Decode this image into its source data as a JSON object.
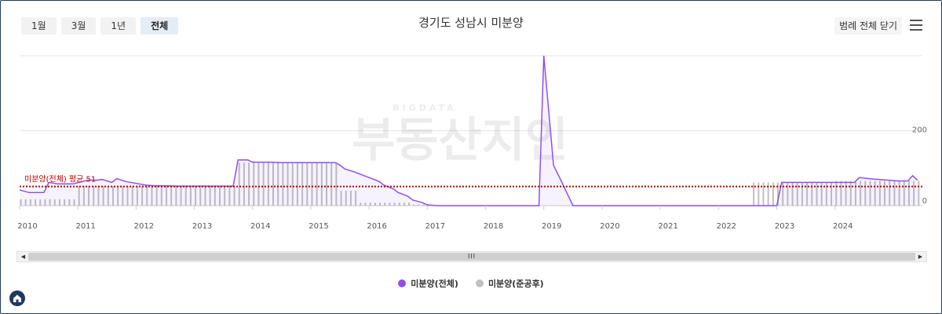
{
  "range_buttons": [
    "1월",
    "3월",
    "1년",
    "전체"
  ],
  "active_range": "전체",
  "title": "경기도 성남시 미분양",
  "legend_close_label": "범례 전체 닫기",
  "watermark": {
    "small": "BIGDATA",
    "big": "부동산지인"
  },
  "colors": {
    "total": "#8e4ff0",
    "completed": "#c0c0c0",
    "average": "#c00000",
    "grid": "#e6e6e6"
  },
  "icons": {
    "menu": "hamburger-menu-icon",
    "scroll_left": "arrow-left-icon",
    "scroll_right": "arrow-right-icon",
    "scroll_grip": "scroll-grip-icon",
    "home": "home-icon"
  },
  "chart_data": {
    "type": "line",
    "x_ticks": [
      "2010",
      "2011",
      "2012",
      "2013",
      "2014",
      "2015",
      "2016",
      "2017",
      "2018",
      "2019",
      "2020",
      "2021",
      "2022",
      "2023",
      "2024"
    ],
    "y_ticks": [
      0,
      200
    ],
    "ylim": [
      0,
      400
    ],
    "average_label": "미분양(전체) 평균 51",
    "average_value": 51,
    "series": [
      {
        "name": "미분양(전체)",
        "kind": "area-line",
        "points": [
          [
            "2010-01",
            42
          ],
          [
            "2010-03",
            35
          ],
          [
            "2010-06",
            35
          ],
          [
            "2010-07",
            62
          ],
          [
            "2010-09",
            58
          ],
          [
            "2010-12",
            58
          ],
          [
            "2011-03",
            68
          ],
          [
            "2011-05",
            68
          ],
          [
            "2011-06",
            70
          ],
          [
            "2011-08",
            62
          ],
          [
            "2011-09",
            72
          ],
          [
            "2011-11",
            64
          ],
          [
            "2012-03",
            55
          ],
          [
            "2012-05",
            53
          ],
          [
            "2012-07",
            53
          ],
          [
            "2012-10",
            52
          ],
          [
            "2012-12",
            52
          ],
          [
            "2013-06",
            52
          ],
          [
            "2013-09",
            52
          ],
          [
            "2013-10",
            122
          ],
          [
            "2013-12",
            122
          ],
          [
            "2014-01",
            116
          ],
          [
            "2014-05",
            116
          ],
          [
            "2014-07",
            115
          ],
          [
            "2014-12",
            115
          ],
          [
            "2015-06",
            115
          ],
          [
            "2015-07",
            108
          ],
          [
            "2015-08",
            98
          ],
          [
            "2015-10",
            90
          ],
          [
            "2015-12",
            80
          ],
          [
            "2016-03",
            65
          ],
          [
            "2016-04",
            55
          ],
          [
            "2016-06",
            45
          ],
          [
            "2016-07",
            35
          ],
          [
            "2016-09",
            25
          ],
          [
            "2016-10",
            15
          ],
          [
            "2016-12",
            8
          ],
          [
            "2017-01",
            2
          ],
          [
            "2017-03",
            0
          ],
          [
            "2018-12",
            0
          ],
          [
            "2019-01",
            400
          ],
          [
            "2019-03",
            108
          ],
          [
            "2019-05",
            55
          ],
          [
            "2019-07",
            0
          ],
          [
            "2023-01",
            0
          ],
          [
            "2023-02",
            62
          ],
          [
            "2023-12",
            62
          ],
          [
            "2024-01",
            62
          ],
          [
            "2024-05",
            62
          ],
          [
            "2024-06",
            75
          ],
          [
            "2024-08",
            72
          ],
          [
            "2024-10",
            70
          ],
          [
            "2024-12",
            68
          ],
          [
            "2025-02",
            66
          ],
          [
            "2025-04",
            66
          ],
          [
            "2025-05",
            80
          ],
          [
            "2025-06",
            68
          ]
        ]
      },
      {
        "name": "미분양(준공후)",
        "kind": "bars",
        "segments": [
          {
            "from": "2010-01",
            "to": "2010-06",
            "value": 17
          },
          {
            "from": "2010-07",
            "to": "2010-12",
            "value": 17
          },
          {
            "from": "2011-01",
            "to": "2013-09",
            "value": 52
          },
          {
            "from": "2013-10",
            "to": "2015-06",
            "value": 115
          },
          {
            "from": "2015-07",
            "to": "2015-10",
            "value": 40
          },
          {
            "from": "2015-11",
            "to": "2016-09",
            "value": 8
          },
          {
            "from": "2016-10",
            "to": "2016-12",
            "value": 3
          },
          {
            "from": "2022-08",
            "to": "2023-12",
            "value": 62
          },
          {
            "from": "2024-01",
            "to": "2025-06",
            "value": 66
          }
        ]
      }
    ]
  }
}
